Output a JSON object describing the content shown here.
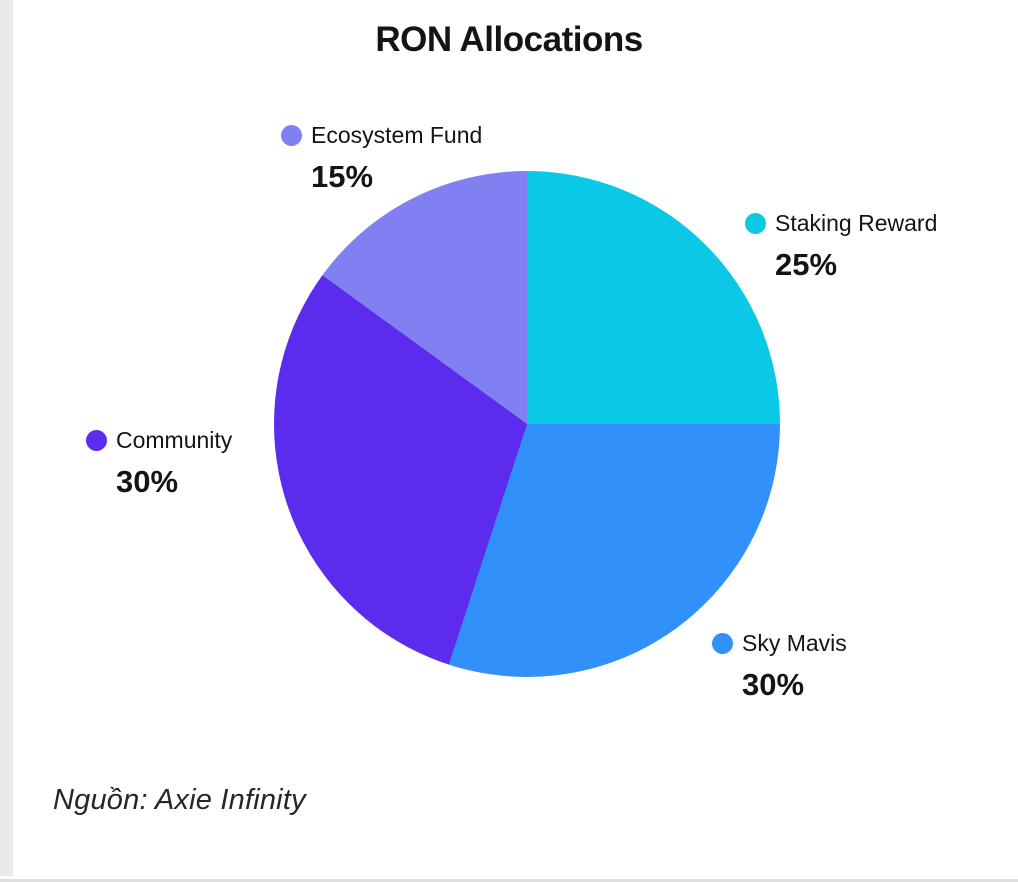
{
  "page": {
    "title": "RON Allocations",
    "source": "Nguồn: Axie Infinity"
  },
  "chart_data": {
    "type": "pie",
    "title": "RON Allocations",
    "source": "Nguồn: Axie Infinity",
    "start_angle_deg": 0,
    "direction": "clockwise",
    "legend_position": "around-pie",
    "slices": [
      {
        "label": "Staking Reward",
        "value": 25,
        "pct_label": "25%",
        "color": "#0bc9e6"
      },
      {
        "label": "Sky Mavis",
        "value": 30,
        "pct_label": "30%",
        "color": "#3190fa"
      },
      {
        "label": "Community",
        "value": 30,
        "pct_label": "30%",
        "color": "#5c2bee"
      },
      {
        "label": "Ecosystem Fund",
        "value": 15,
        "pct_label": "15%",
        "color": "#8180f2"
      }
    ]
  }
}
